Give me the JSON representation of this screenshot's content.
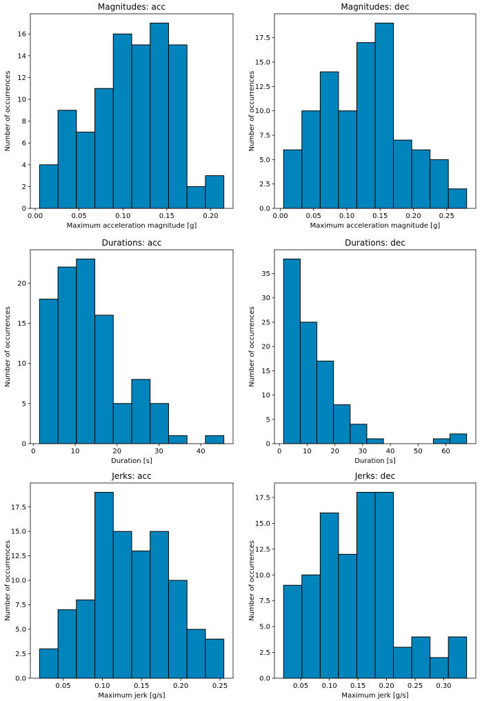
{
  "chart_data": [
    {
      "type": "histogram",
      "title": "Magnitudes: acc",
      "x_label": "Maximum acceleration magnitude [g]",
      "y_label": "Number of occurrences",
      "color": "#0084bb",
      "bins": [
        0.005,
        0.026,
        0.047,
        0.068,
        0.089,
        0.11,
        0.131,
        0.152,
        0.173,
        0.194,
        0.215
      ],
      "values": [
        4,
        9,
        7,
        11,
        16,
        15,
        17,
        15,
        2,
        3
      ],
      "xlim": [
        -0.0055,
        0.2255
      ],
      "xticks": [
        {
          "value": 0,
          "label": "0.00"
        },
        {
          "value": 0.05,
          "label": "0.05"
        },
        {
          "value": 0.1,
          "label": "0.10"
        },
        {
          "value": 0.15,
          "label": "0.15"
        },
        {
          "value": 0.2,
          "label": "0.20"
        }
      ],
      "ylim": [
        0,
        17.85
      ],
      "yticks": [
        0,
        2,
        4,
        6,
        8,
        10,
        12,
        14,
        16
      ]
    },
    {
      "type": "histogram",
      "title": "Magnitudes: dec",
      "x_label": "Maximum acceleration magnitude [g]",
      "y_label": "Number of occurrences",
      "color": "#0084bb",
      "bins": [
        0.005,
        0.0325,
        0.06,
        0.0875,
        0.115,
        0.1425,
        0.17,
        0.1975,
        0.225,
        0.2525,
        0.28
      ],
      "values": [
        6,
        10,
        14,
        10,
        17,
        19,
        7,
        6,
        5,
        2
      ],
      "xlim": [
        -0.00875,
        0.29375
      ],
      "xticks": [
        {
          "value": 0,
          "label": "0.00"
        },
        {
          "value": 0.05,
          "label": "0.05"
        },
        {
          "value": 0.1,
          "label": "0.10"
        },
        {
          "value": 0.15,
          "label": "0.15"
        },
        {
          "value": 0.2,
          "label": "0.20"
        },
        {
          "value": 0.25,
          "label": "0.25"
        }
      ],
      "ylim": [
        0,
        19.95
      ],
      "yticks": [
        {
          "value": 0,
          "label": "0.0"
        },
        {
          "value": 2.5,
          "label": "2.5"
        },
        {
          "value": 5,
          "label": "5.0"
        },
        {
          "value": 7.5,
          "label": "7.5"
        },
        {
          "value": 10,
          "label": "10.0"
        },
        {
          "value": 12.5,
          "label": "12.5"
        },
        {
          "value": 15,
          "label": "15.0"
        },
        {
          "value": 17.5,
          "label": "17.5"
        }
      ]
    },
    {
      "type": "histogram",
      "title": "Durations: acc",
      "x_label": "Duration [s]",
      "y_label": "Number of occurrences",
      "color": "#0084bb",
      "bins": [
        1.5,
        5.9,
        10.3,
        14.7,
        19.1,
        23.5,
        27.9,
        32.3,
        36.7,
        41.1,
        45.5
      ],
      "values": [
        18,
        22,
        23,
        16,
        5,
        8,
        5,
        1,
        0,
        1
      ],
      "xlim": [
        -0.7,
        47.7
      ],
      "xticks": [
        0,
        10,
        20,
        30,
        40
      ],
      "ylim": [
        0,
        24.15
      ],
      "yticks": [
        0,
        5,
        10,
        15,
        20
      ]
    },
    {
      "type": "histogram",
      "title": "Durations: dec",
      "x_label": "Duration [s]",
      "y_label": "Number of occurrences",
      "color": "#0084bb",
      "bins": [
        1.5,
        7.5,
        13.5,
        19.5,
        25.5,
        31.5,
        37.5,
        43.5,
        49.5,
        55.5,
        61.5,
        67.5
      ],
      "values": [
        38,
        25,
        17,
        8,
        4,
        1,
        0,
        0,
        0,
        1,
        2
      ],
      "xlim": [
        -1.8,
        70.8
      ],
      "xticks": [
        0,
        10,
        20,
        30,
        40,
        50,
        60
      ],
      "ylim": [
        0,
        39.9
      ],
      "yticks": [
        0,
        5,
        10,
        15,
        20,
        25,
        30,
        35
      ]
    },
    {
      "type": "histogram",
      "title": "Jerks: acc",
      "x_label": "Maximum jerk [g/s]",
      "y_label": "Number of occurrences",
      "color": "#0084bb",
      "bins": [
        0.02,
        0.0435,
        0.067,
        0.0905,
        0.114,
        0.1375,
        0.161,
        0.1845,
        0.208,
        0.2315,
        0.255
      ],
      "values": [
        3,
        7,
        8,
        19,
        15,
        13,
        15,
        10,
        5,
        4
      ],
      "xlim": [
        0.00825,
        0.26675
      ],
      "xticks": [
        {
          "value": 0.05,
          "label": "0.05"
        },
        {
          "value": 0.1,
          "label": "0.10"
        },
        {
          "value": 0.15,
          "label": "0.15"
        },
        {
          "value": 0.2,
          "label": "0.20"
        },
        {
          "value": 0.25,
          "label": "0.25"
        }
      ],
      "ylim": [
        0,
        19.95
      ],
      "yticks": [
        {
          "value": 0,
          "label": "0.0"
        },
        {
          "value": 2.5,
          "label": "2.5"
        },
        {
          "value": 5,
          "label": "5.0"
        },
        {
          "value": 7.5,
          "label": "7.5"
        },
        {
          "value": 10,
          "label": "10.0"
        },
        {
          "value": 12.5,
          "label": "12.5"
        },
        {
          "value": 15,
          "label": "15.0"
        },
        {
          "value": 17.5,
          "label": "17.5"
        }
      ]
    },
    {
      "type": "histogram",
      "title": "Jerks: dec",
      "x_label": "Maximum jerk [g/s]",
      "y_label": "Number of occurrences",
      "color": "#0084bb",
      "bins": [
        0.02,
        0.052,
        0.084,
        0.116,
        0.148,
        0.18,
        0.212,
        0.244,
        0.276,
        0.308,
        0.34
      ],
      "values": [
        9,
        10,
        16,
        12,
        18,
        18,
        3,
        4,
        2,
        4
      ],
      "xlim": [
        0.004,
        0.356
      ],
      "xticks": [
        {
          "value": 0.05,
          "label": "0.05"
        },
        {
          "value": 0.1,
          "label": "0.10"
        },
        {
          "value": 0.15,
          "label": "0.15"
        },
        {
          "value": 0.2,
          "label": "0.20"
        },
        {
          "value": 0.25,
          "label": "0.25"
        },
        {
          "value": 0.3,
          "label": "0.30"
        }
      ],
      "ylim": [
        0,
        18.9
      ],
      "yticks": [
        {
          "value": 0,
          "label": "0.0"
        },
        {
          "value": 2.5,
          "label": "2.5"
        },
        {
          "value": 5,
          "label": "5.0"
        },
        {
          "value": 7.5,
          "label": "7.5"
        },
        {
          "value": 10,
          "label": "10.0"
        },
        {
          "value": 12.5,
          "label": "12.5"
        },
        {
          "value": 15,
          "label": "15.0"
        },
        {
          "value": 17.5,
          "label": "17.5"
        }
      ]
    }
  ]
}
